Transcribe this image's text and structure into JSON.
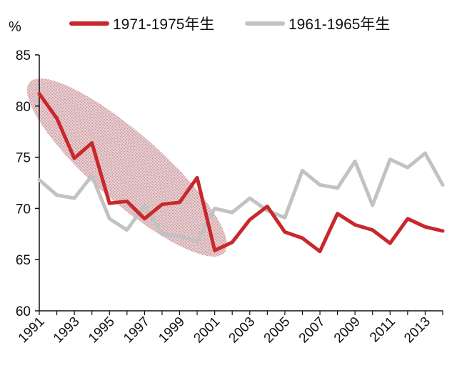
{
  "chart_data": {
    "type": "line",
    "y_unit": "%",
    "ylim": [
      60,
      85
    ],
    "y_ticks": [
      60,
      65,
      70,
      75,
      80,
      85
    ],
    "xlim": [
      1991,
      2014
    ],
    "x_tick_labels": [
      "1991",
      "1993",
      "1995",
      "1997",
      "1999",
      "2001",
      "2003",
      "2005",
      "2007",
      "2009",
      "2011",
      "2013"
    ],
    "x": [
      1991,
      1992,
      1993,
      1994,
      1995,
      1996,
      1997,
      1998,
      1999,
      2000,
      2001,
      2002,
      2003,
      2004,
      2005,
      2006,
      2007,
      2008,
      2009,
      2010,
      2011,
      2012,
      2013,
      2014
    ],
    "grid": false,
    "legend_position": "top",
    "series": [
      {
        "name": "1971-1975年生",
        "color": "#c8282c",
        "values": [
          81.2,
          78.8,
          74.9,
          76.4,
          70.5,
          70.7,
          69.0,
          70.4,
          70.6,
          73.0,
          65.9,
          66.7,
          68.9,
          70.2,
          67.7,
          67.1,
          65.8,
          69.5,
          68.4,
          67.9,
          66.6,
          69.0,
          68.2,
          67.8
        ]
      },
      {
        "name": "1961-1965年生",
        "color": "#c2c2c2",
        "values": [
          72.8,
          71.3,
          71.0,
          73.2,
          69.0,
          67.9,
          70.3,
          67.5,
          67.3,
          66.8,
          70.0,
          69.6,
          71.0,
          69.8,
          69.1,
          73.7,
          72.3,
          72.0,
          74.6,
          70.3,
          74.8,
          74.0,
          75.4,
          72.3
        ]
      }
    ],
    "highlight": {
      "shape": "ellipse",
      "color": "#b5757b",
      "covers_x": [
        1991,
        2001
      ]
    }
  }
}
